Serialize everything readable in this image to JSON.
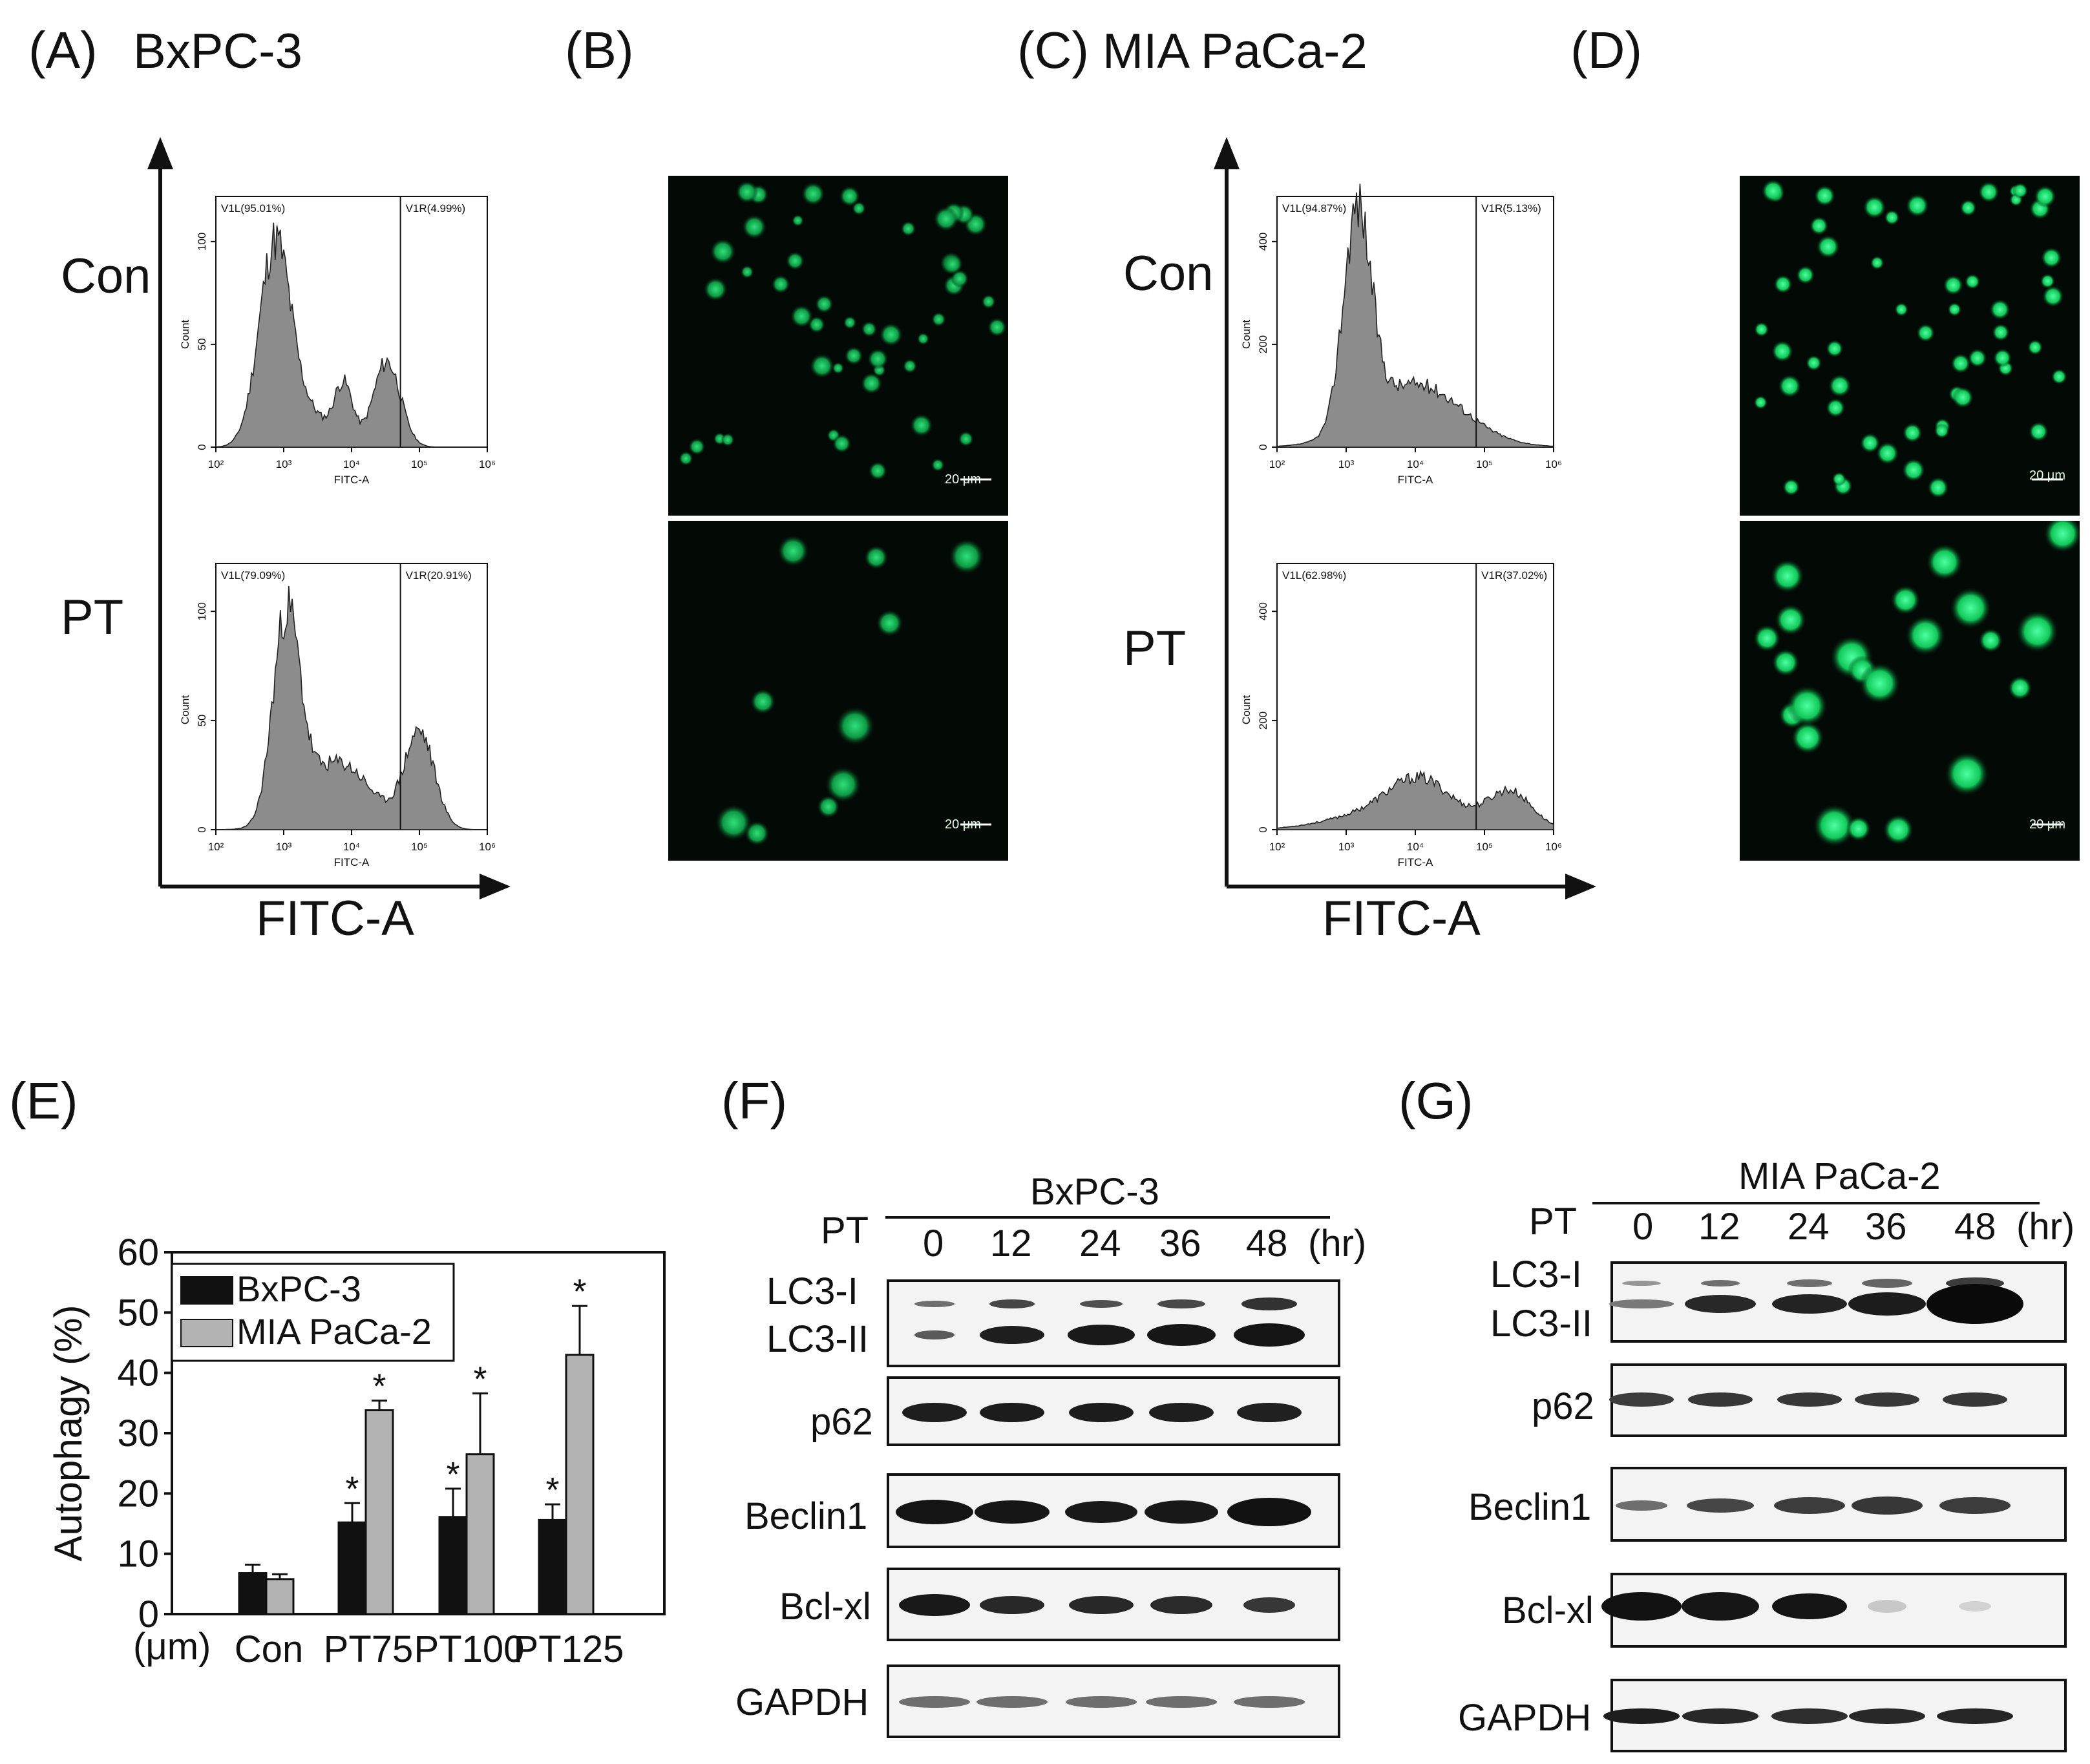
{
  "panels": {
    "A": {
      "label": "(A)",
      "cell_line": "BxPC-3"
    },
    "B": {
      "label": "(B)"
    },
    "C": {
      "label": "(C)",
      "cell_line": "MIA PaCa-2"
    },
    "D": {
      "label": "(D)"
    },
    "E": {
      "label": "(E)"
    },
    "F": {
      "label": "(F)"
    },
    "G": {
      "label": "(G)"
    }
  },
  "flow": {
    "row_labels": [
      "Con",
      "PT"
    ],
    "axis_label": "FITC-A",
    "x_ticks": [
      "10²",
      "10³",
      "10⁴",
      "10⁵",
      "10⁶"
    ],
    "x_title": "FITC-A",
    "y_title": "Count",
    "A_con": {
      "gate_left": "V1L(95.01%)",
      "gate_right": "V1R(4.99%)",
      "y_ticks": [
        "0",
        "50",
        "100"
      ]
    },
    "A_pt": {
      "gate_left": "V1L(79.09%)",
      "gate_right": "V1R(20.91%)",
      "y_ticks": [
        "0",
        "50",
        "100"
      ]
    },
    "C_con": {
      "gate_left": "V1L(94.87%)",
      "gate_right": "V1R(5.13%)",
      "y_ticks": [
        "0",
        "200",
        "400"
      ]
    },
    "C_pt": {
      "gate_left": "V1L(62.98%)",
      "gate_right": "V1R(37.02%)",
      "y_ticks": [
        "0",
        "200",
        "400"
      ]
    }
  },
  "micrographs": {
    "scale_bar": "20 μm"
  },
  "chart_data": {
    "type": "bar",
    "categories": [
      "Con",
      "PT75",
      "PT100",
      "PT125"
    ],
    "unit_prefix": "(μm)",
    "ylabel": "Autophagy (%)",
    "ylim": [
      0,
      60
    ],
    "y_ticks": [
      "0",
      "10",
      "20",
      "30",
      "40",
      "50",
      "60"
    ],
    "series": [
      {
        "name": "BxPC-3",
        "color": "#111111",
        "values": [
          6.8,
          15.2,
          16.1,
          15.6
        ],
        "errors": [
          1.4,
          3.2,
          4.7,
          2.6
        ],
        "sig": [
          "",
          "*",
          "*",
          "*"
        ]
      },
      {
        "name": "MIA PaCa-2",
        "color": "#b3b3b3",
        "values": [
          5.8,
          33.8,
          26.5,
          43.0
        ],
        "errors": [
          0.8,
          1.6,
          10.1,
          8.1
        ],
        "sig": [
          "",
          "*",
          "*",
          "*"
        ]
      }
    ],
    "legend_position": "top-left"
  },
  "western": {
    "treatment": "PT",
    "unit": "(hr)",
    "timepoints": [
      "0",
      "12",
      "24",
      "36",
      "48"
    ],
    "F": {
      "cell_line": "BxPC-3",
      "proteins": [
        "LC3-I",
        "LC3-II",
        "p62",
        "Beclin1",
        "Bcl-xl",
        "GAPDH"
      ]
    },
    "G": {
      "cell_line": "MIA PaCa-2",
      "proteins": [
        "LC3-I",
        "LC3-II",
        "p62",
        "Beclin1",
        "Bcl-xl",
        "GAPDH"
      ]
    }
  }
}
